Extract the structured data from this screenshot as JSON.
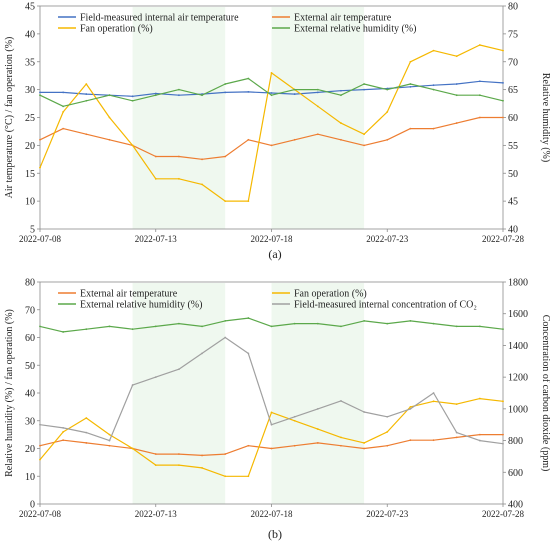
{
  "figure": {
    "caption_a": "(a)",
    "caption_b": "(b)"
  },
  "chart_data": [
    {
      "type": "line",
      "panel": "(a)",
      "x_ticks": [
        "2022-07-08",
        "2022-07-13",
        "2022-07-18",
        "2022-07-23",
        "2022-07-28"
      ],
      "x_range": [
        "2022-07-08",
        "2022-07-28"
      ],
      "y_left": {
        "label": "Air temperature (°C) / fan operation (%)",
        "range": [
          5,
          45
        ],
        "ticks": [
          "5",
          "10",
          "15",
          "20",
          "25",
          "30",
          "35",
          "40",
          "45"
        ]
      },
      "y_right": {
        "label": "Relative humidity (%)",
        "range": [
          40,
          80
        ],
        "ticks": [
          "40",
          "45",
          "50",
          "55",
          "60",
          "65",
          "70",
          "75",
          "80"
        ]
      },
      "shaded_periods": [
        [
          "2022-07-12",
          "2022-07-16"
        ],
        [
          "2022-07-18",
          "2022-07-22"
        ]
      ],
      "legend": "top, two columns",
      "grid": false,
      "series": [
        {
          "name": "Field-measured internal air temperature",
          "color": "#4472c4",
          "axis": "left",
          "x": [
            0,
            1,
            2,
            3,
            4,
            5,
            6,
            7,
            8,
            9,
            10,
            11,
            12,
            13,
            14,
            15,
            16,
            17,
            18,
            19,
            20
          ],
          "values": [
            29.5,
            29.5,
            29.2,
            29.0,
            28.8,
            29.3,
            29.0,
            29.2,
            29.5,
            29.6,
            29.4,
            29.2,
            29.5,
            29.8,
            30.0,
            30.2,
            30.5,
            30.8,
            31.0,
            31.5,
            31.2
          ]
        },
        {
          "name": "External air temperature",
          "color": "#ed7d31",
          "axis": "left",
          "x": [
            0,
            1,
            2,
            3,
            4,
            5,
            6,
            7,
            8,
            9,
            10,
            11,
            12,
            13,
            14,
            15,
            16,
            17,
            18,
            19,
            20
          ],
          "values": [
            21,
            23,
            22,
            21,
            20,
            18,
            18,
            17.5,
            18,
            21,
            20,
            21,
            22,
            21,
            20,
            21,
            23,
            23,
            24,
            25,
            25
          ]
        },
        {
          "name": "Fan operation (%)",
          "color": "#f5b800",
          "axis": "left",
          "x": [
            0,
            1,
            2,
            3,
            4,
            5,
            6,
            7,
            8,
            9,
            10,
            11,
            12,
            13,
            14,
            15,
            16,
            17,
            18,
            19,
            20
          ],
          "values": [
            16,
            26,
            31,
            25,
            20,
            14,
            14,
            13,
            10,
            10,
            33,
            30,
            27,
            24,
            22,
            26,
            35,
            37,
            36,
            38,
            37
          ]
        },
        {
          "name": "External relative humidity (%)",
          "color": "#5ba84a",
          "axis": "right",
          "x": [
            0,
            1,
            2,
            3,
            4,
            5,
            6,
            7,
            8,
            9,
            10,
            11,
            12,
            13,
            14,
            15,
            16,
            17,
            18,
            19,
            20
          ],
          "values": [
            64,
            62,
            63,
            64,
            63,
            64,
            65,
            64,
            66,
            67,
            64,
            65,
            65,
            64,
            66,
            65,
            66,
            65,
            64,
            64,
            63
          ]
        }
      ]
    },
    {
      "type": "line",
      "panel": "(b)",
      "x_ticks": [
        "2022-07-08",
        "2022-07-13",
        "2022-07-18",
        "2022-07-23",
        "2022-07-28"
      ],
      "x_range": [
        "2022-07-08",
        "2022-07-28"
      ],
      "y_left": {
        "label": "Relative humidity (%) / fan operation (%)",
        "range": [
          0,
          80
        ],
        "ticks": [
          "0",
          "10",
          "20",
          "30",
          "40",
          "50",
          "60",
          "70",
          "80"
        ]
      },
      "y_right": {
        "label": "Concentration of carbon dioxide (ppm)",
        "range": [
          400,
          1800
        ],
        "ticks": [
          "400",
          "600",
          "800",
          "1000",
          "1200",
          "1400",
          "1600",
          "1800"
        ]
      },
      "shaded_periods": [
        [
          "2022-07-12",
          "2022-07-16"
        ],
        [
          "2022-07-18",
          "2022-07-22"
        ]
      ],
      "legend": "top, two columns",
      "grid": false,
      "series": [
        {
          "name": "External air temperature",
          "color": "#ed7d31",
          "axis": "left",
          "x": [
            0,
            1,
            2,
            3,
            4,
            5,
            6,
            7,
            8,
            9,
            10,
            11,
            12,
            13,
            14,
            15,
            16,
            17,
            18,
            19,
            20
          ],
          "values": [
            21,
            23,
            22,
            21,
            20,
            18,
            18,
            17.5,
            18,
            21,
            20,
            21,
            22,
            21,
            20,
            21,
            23,
            23,
            24,
            25,
            25
          ]
        },
        {
          "name": "Fan operation (%)",
          "color": "#f5b800",
          "axis": "left",
          "x": [
            0,
            1,
            2,
            3,
            4,
            5,
            6,
            7,
            8,
            9,
            10,
            11,
            12,
            13,
            14,
            15,
            16,
            17,
            18,
            19,
            20
          ],
          "values": [
            16,
            26,
            31,
            25,
            20,
            14,
            14,
            13,
            10,
            10,
            33,
            30,
            27,
            24,
            22,
            26,
            35,
            37,
            36,
            38,
            37
          ]
        },
        {
          "name": "External relative humidity (%)",
          "color": "#5ba84a",
          "axis": "left",
          "x": [
            0,
            1,
            2,
            3,
            4,
            5,
            6,
            7,
            8,
            9,
            10,
            11,
            12,
            13,
            14,
            15,
            16,
            17,
            18,
            19,
            20
          ],
          "values": [
            64,
            62,
            63,
            64,
            63,
            64,
            65,
            64,
            66,
            67,
            64,
            65,
            65,
            64,
            66,
            65,
            66,
            65,
            64,
            64,
            63
          ]
        },
        {
          "name": "Field-measured internal concentration of CO₂",
          "color": "#a0a0a0",
          "axis": "right",
          "x": [
            0,
            1,
            2,
            3,
            4,
            5,
            6,
            7,
            8,
            9,
            10,
            11,
            12,
            13,
            14,
            15,
            16,
            17,
            18,
            19,
            20
          ],
          "values": [
            900,
            880,
            850,
            800,
            1150,
            1200,
            1250,
            1350,
            1450,
            1350,
            900,
            950,
            1000,
            1050,
            980,
            950,
            1000,
            1100,
            850,
            800,
            780
          ]
        }
      ]
    }
  ]
}
